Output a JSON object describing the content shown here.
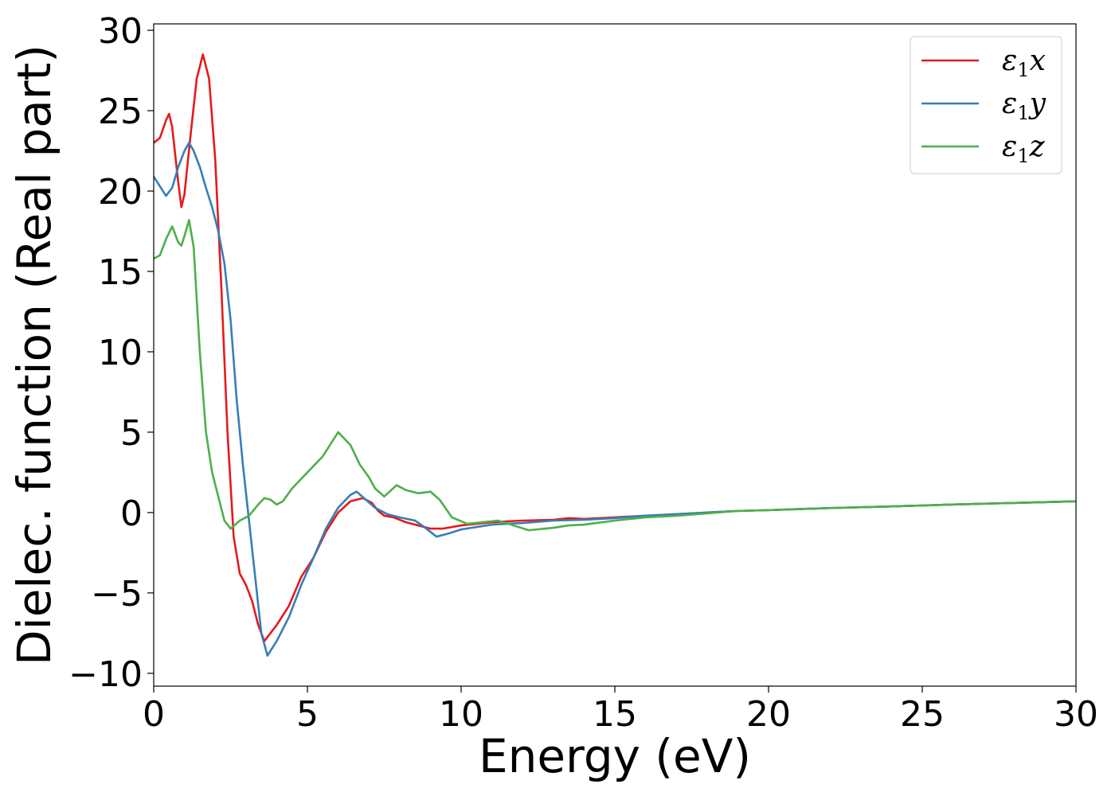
{
  "chart_data": {
    "type": "line",
    "xlabel": "Energy (eV)",
    "ylabel": "Dielec. function (Real part)",
    "xlim": [
      0,
      30
    ],
    "ylim": [
      -10.8,
      30.4
    ],
    "xticks": [
      0,
      5,
      10,
      15,
      20,
      25,
      30
    ],
    "yticks": [
      -10,
      -5,
      0,
      5,
      10,
      15,
      20,
      25,
      30
    ],
    "xtick_labels": [
      "0",
      "5",
      "10",
      "15",
      "20",
      "25",
      "30"
    ],
    "ytick_labels": [
      "−10",
      "−5",
      "0",
      "5",
      "10",
      "15",
      "20",
      "25",
      "30"
    ],
    "grid": false,
    "legend_position": "top-right",
    "series": [
      {
        "name": "ε1x",
        "legend": {
          "symbol": "ε",
          "sub": "1",
          "suffix": "x"
        },
        "color": "#e41a1c",
        "points": [
          [
            0,
            23.0
          ],
          [
            0.2,
            23.3
          ],
          [
            0.4,
            24.4
          ],
          [
            0.5,
            24.8
          ],
          [
            0.6,
            24.0
          ],
          [
            0.8,
            20.5
          ],
          [
            0.9,
            19.0
          ],
          [
            1.0,
            19.8
          ],
          [
            1.2,
            23.5
          ],
          [
            1.4,
            27.0
          ],
          [
            1.6,
            28.5
          ],
          [
            1.8,
            27.0
          ],
          [
            2.0,
            22.0
          ],
          [
            2.2,
            14.0
          ],
          [
            2.4,
            5.0
          ],
          [
            2.6,
            -1.5
          ],
          [
            2.8,
            -3.8
          ],
          [
            3.0,
            -4.5
          ],
          [
            3.2,
            -5.5
          ],
          [
            3.4,
            -7.0
          ],
          [
            3.6,
            -8.0
          ],
          [
            4.0,
            -7.0
          ],
          [
            4.4,
            -5.8
          ],
          [
            4.8,
            -4.0
          ],
          [
            5.2,
            -2.8
          ],
          [
            5.6,
            -1.2
          ],
          [
            6.0,
            0.0
          ],
          [
            6.4,
            0.7
          ],
          [
            6.8,
            0.9
          ],
          [
            7.1,
            0.6
          ],
          [
            7.3,
            0.1
          ],
          [
            7.5,
            -0.2
          ],
          [
            7.8,
            -0.3
          ],
          [
            8.2,
            -0.6
          ],
          [
            8.6,
            -0.8
          ],
          [
            9.0,
            -1.0
          ],
          [
            9.4,
            -1.0
          ],
          [
            10.0,
            -0.8
          ],
          [
            11.0,
            -0.6
          ],
          [
            12.0,
            -0.5
          ],
          [
            13.0,
            -0.45
          ],
          [
            13.5,
            -0.35
          ],
          [
            14.0,
            -0.4
          ],
          [
            14.5,
            -0.35
          ],
          [
            15.0,
            -0.3
          ],
          [
            16.0,
            -0.2
          ],
          [
            17.0,
            -0.1
          ],
          [
            18.0,
            0.0
          ],
          [
            19.0,
            0.1
          ],
          [
            20.0,
            0.15
          ],
          [
            22.0,
            0.28
          ],
          [
            24.0,
            0.38
          ],
          [
            26.0,
            0.5
          ],
          [
            28.0,
            0.6
          ],
          [
            30.0,
            0.7
          ]
        ]
      },
      {
        "name": "ε1y",
        "legend": {
          "symbol": "ε",
          "sub": "1",
          "suffix": "y"
        },
        "color": "#377eb8",
        "points": [
          [
            0,
            20.9
          ],
          [
            0.2,
            20.3
          ],
          [
            0.4,
            19.7
          ],
          [
            0.6,
            20.2
          ],
          [
            0.8,
            21.5
          ],
          [
            1.0,
            22.5
          ],
          [
            1.15,
            23.0
          ],
          [
            1.3,
            22.5
          ],
          [
            1.5,
            21.5
          ],
          [
            1.7,
            20.2
          ],
          [
            1.9,
            19.0
          ],
          [
            2.1,
            17.5
          ],
          [
            2.3,
            15.5
          ],
          [
            2.5,
            12.0
          ],
          [
            2.7,
            7.0
          ],
          [
            2.9,
            3.0
          ],
          [
            3.1,
            -0.5
          ],
          [
            3.3,
            -4.0
          ],
          [
            3.5,
            -7.5
          ],
          [
            3.7,
            -8.9
          ],
          [
            4.0,
            -8.0
          ],
          [
            4.4,
            -6.5
          ],
          [
            4.8,
            -4.5
          ],
          [
            5.2,
            -2.8
          ],
          [
            5.6,
            -1.0
          ],
          [
            6.0,
            0.3
          ],
          [
            6.4,
            1.1
          ],
          [
            6.6,
            1.3
          ],
          [
            6.9,
            0.8
          ],
          [
            7.2,
            0.3
          ],
          [
            7.6,
            -0.1
          ],
          [
            8.0,
            -0.3
          ],
          [
            8.5,
            -0.5
          ],
          [
            8.8,
            -0.9
          ],
          [
            9.2,
            -1.5
          ],
          [
            9.6,
            -1.3
          ],
          [
            10.0,
            -1.05
          ],
          [
            10.5,
            -0.9
          ],
          [
            11.0,
            -0.75
          ],
          [
            12.0,
            -0.65
          ],
          [
            13.0,
            -0.5
          ],
          [
            14.0,
            -0.45
          ],
          [
            15.0,
            -0.35
          ],
          [
            16.0,
            -0.2
          ],
          [
            17.0,
            -0.1
          ],
          [
            18.0,
            0.0
          ],
          [
            19.0,
            0.1
          ],
          [
            20.0,
            0.15
          ],
          [
            22.0,
            0.28
          ],
          [
            24.0,
            0.38
          ],
          [
            26.0,
            0.5
          ],
          [
            28.0,
            0.6
          ],
          [
            30.0,
            0.7
          ]
        ]
      },
      {
        "name": "ε1z",
        "legend": {
          "symbol": "ε",
          "sub": "1",
          "suffix": "z"
        },
        "color": "#4daf4a",
        "points": [
          [
            0,
            15.8
          ],
          [
            0.2,
            16.0
          ],
          [
            0.4,
            17.0
          ],
          [
            0.6,
            17.8
          ],
          [
            0.8,
            16.8
          ],
          [
            0.9,
            16.6
          ],
          [
            1.0,
            17.2
          ],
          [
            1.15,
            18.2
          ],
          [
            1.3,
            16.5
          ],
          [
            1.5,
            10.0
          ],
          [
            1.7,
            5.0
          ],
          [
            1.9,
            2.5
          ],
          [
            2.1,
            1.0
          ],
          [
            2.3,
            -0.5
          ],
          [
            2.5,
            -1.0
          ],
          [
            2.8,
            -0.5
          ],
          [
            3.1,
            -0.2
          ],
          [
            3.4,
            0.5
          ],
          [
            3.6,
            0.9
          ],
          [
            3.8,
            0.8
          ],
          [
            4.0,
            0.5
          ],
          [
            4.2,
            0.7
          ],
          [
            4.5,
            1.5
          ],
          [
            5.0,
            2.5
          ],
          [
            5.5,
            3.5
          ],
          [
            6.0,
            5.0
          ],
          [
            6.4,
            4.2
          ],
          [
            6.7,
            3.0
          ],
          [
            7.0,
            2.2
          ],
          [
            7.2,
            1.5
          ],
          [
            7.5,
            1.0
          ],
          [
            7.9,
            1.7
          ],
          [
            8.2,
            1.4
          ],
          [
            8.6,
            1.2
          ],
          [
            9.0,
            1.3
          ],
          [
            9.3,
            0.8
          ],
          [
            9.7,
            -0.3
          ],
          [
            10.2,
            -0.7
          ],
          [
            10.7,
            -0.6
          ],
          [
            11.2,
            -0.5
          ],
          [
            11.7,
            -0.8
          ],
          [
            12.2,
            -1.1
          ],
          [
            13.0,
            -0.95
          ],
          [
            13.5,
            -0.8
          ],
          [
            14.0,
            -0.75
          ],
          [
            15.0,
            -0.5
          ],
          [
            16.0,
            -0.3
          ],
          [
            17.0,
            -0.2
          ],
          [
            18.0,
            -0.05
          ],
          [
            19.0,
            0.1
          ],
          [
            20.0,
            0.15
          ],
          [
            22.0,
            0.28
          ],
          [
            24.0,
            0.38
          ],
          [
            26.0,
            0.5
          ],
          [
            28.0,
            0.6
          ],
          [
            30.0,
            0.7
          ]
        ]
      }
    ]
  }
}
